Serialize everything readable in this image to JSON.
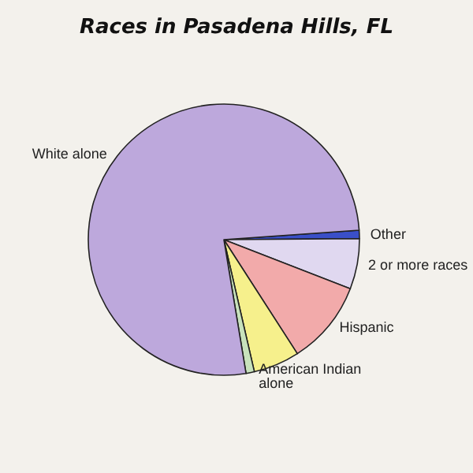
{
  "chart_data": {
    "type": "pie",
    "title": "Races in Pasadena Hills, FL",
    "categories": [
      "Other",
      "2 or more races",
      "Hispanic",
      null,
      "American Indian alone",
      "White alone"
    ],
    "values": [
      1,
      6,
      10,
      5.5,
      1,
      76.5
    ],
    "colors": [
      "#3a4fc8",
      "#e0d8f0",
      "#f2aaaa",
      "#f6f08c",
      "#c8e2bc",
      "#bda8dc"
    ]
  }
}
